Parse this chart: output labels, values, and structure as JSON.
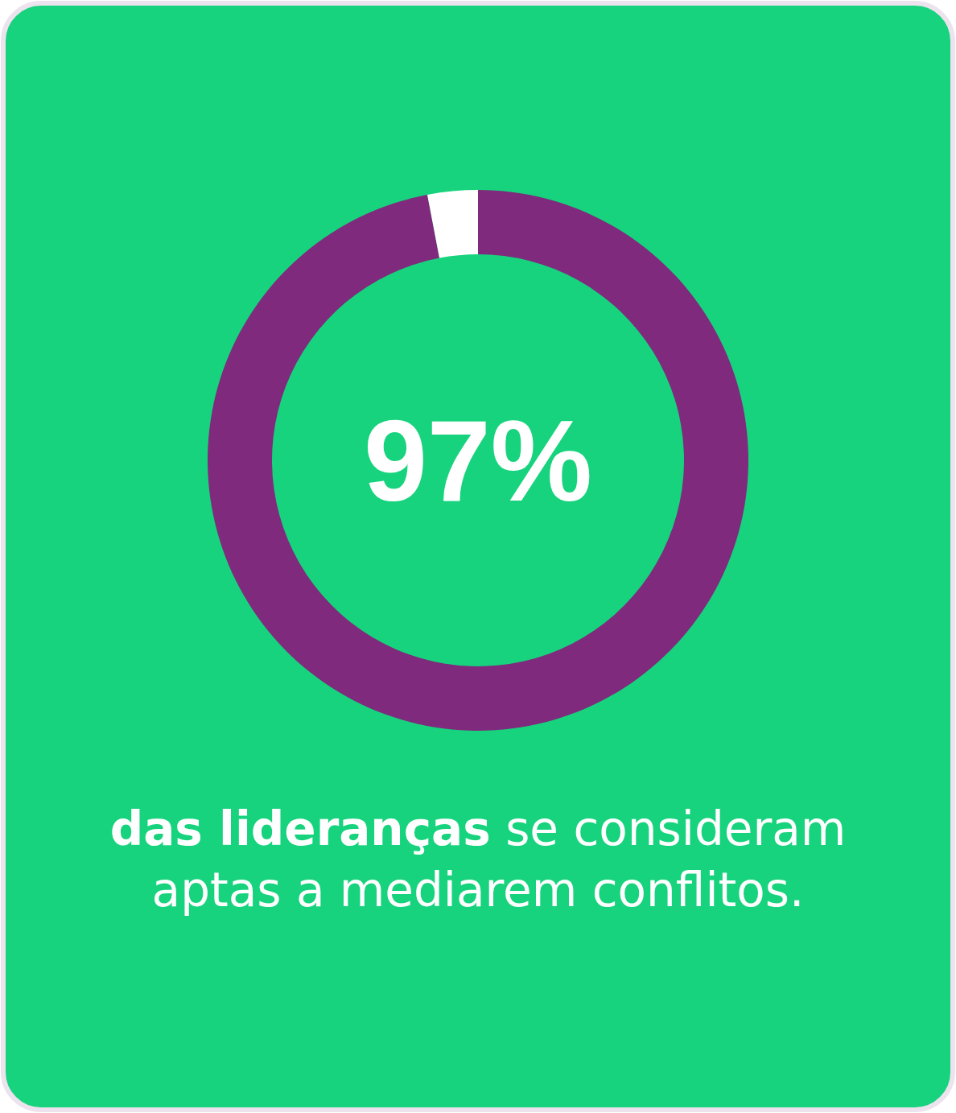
{
  "chart_data": {
    "type": "donut",
    "categories": [
      null,
      null
    ],
    "values": [
      97,
      3
    ],
    "colors": [
      "#7f2a7c",
      "#ffffff"
    ],
    "value_labels": [
      "97%",
      null
    ],
    "annotations": [
      "das lideranças",
      "se consideram",
      "aptas a mediarem conflitos."
    ]
  }
}
